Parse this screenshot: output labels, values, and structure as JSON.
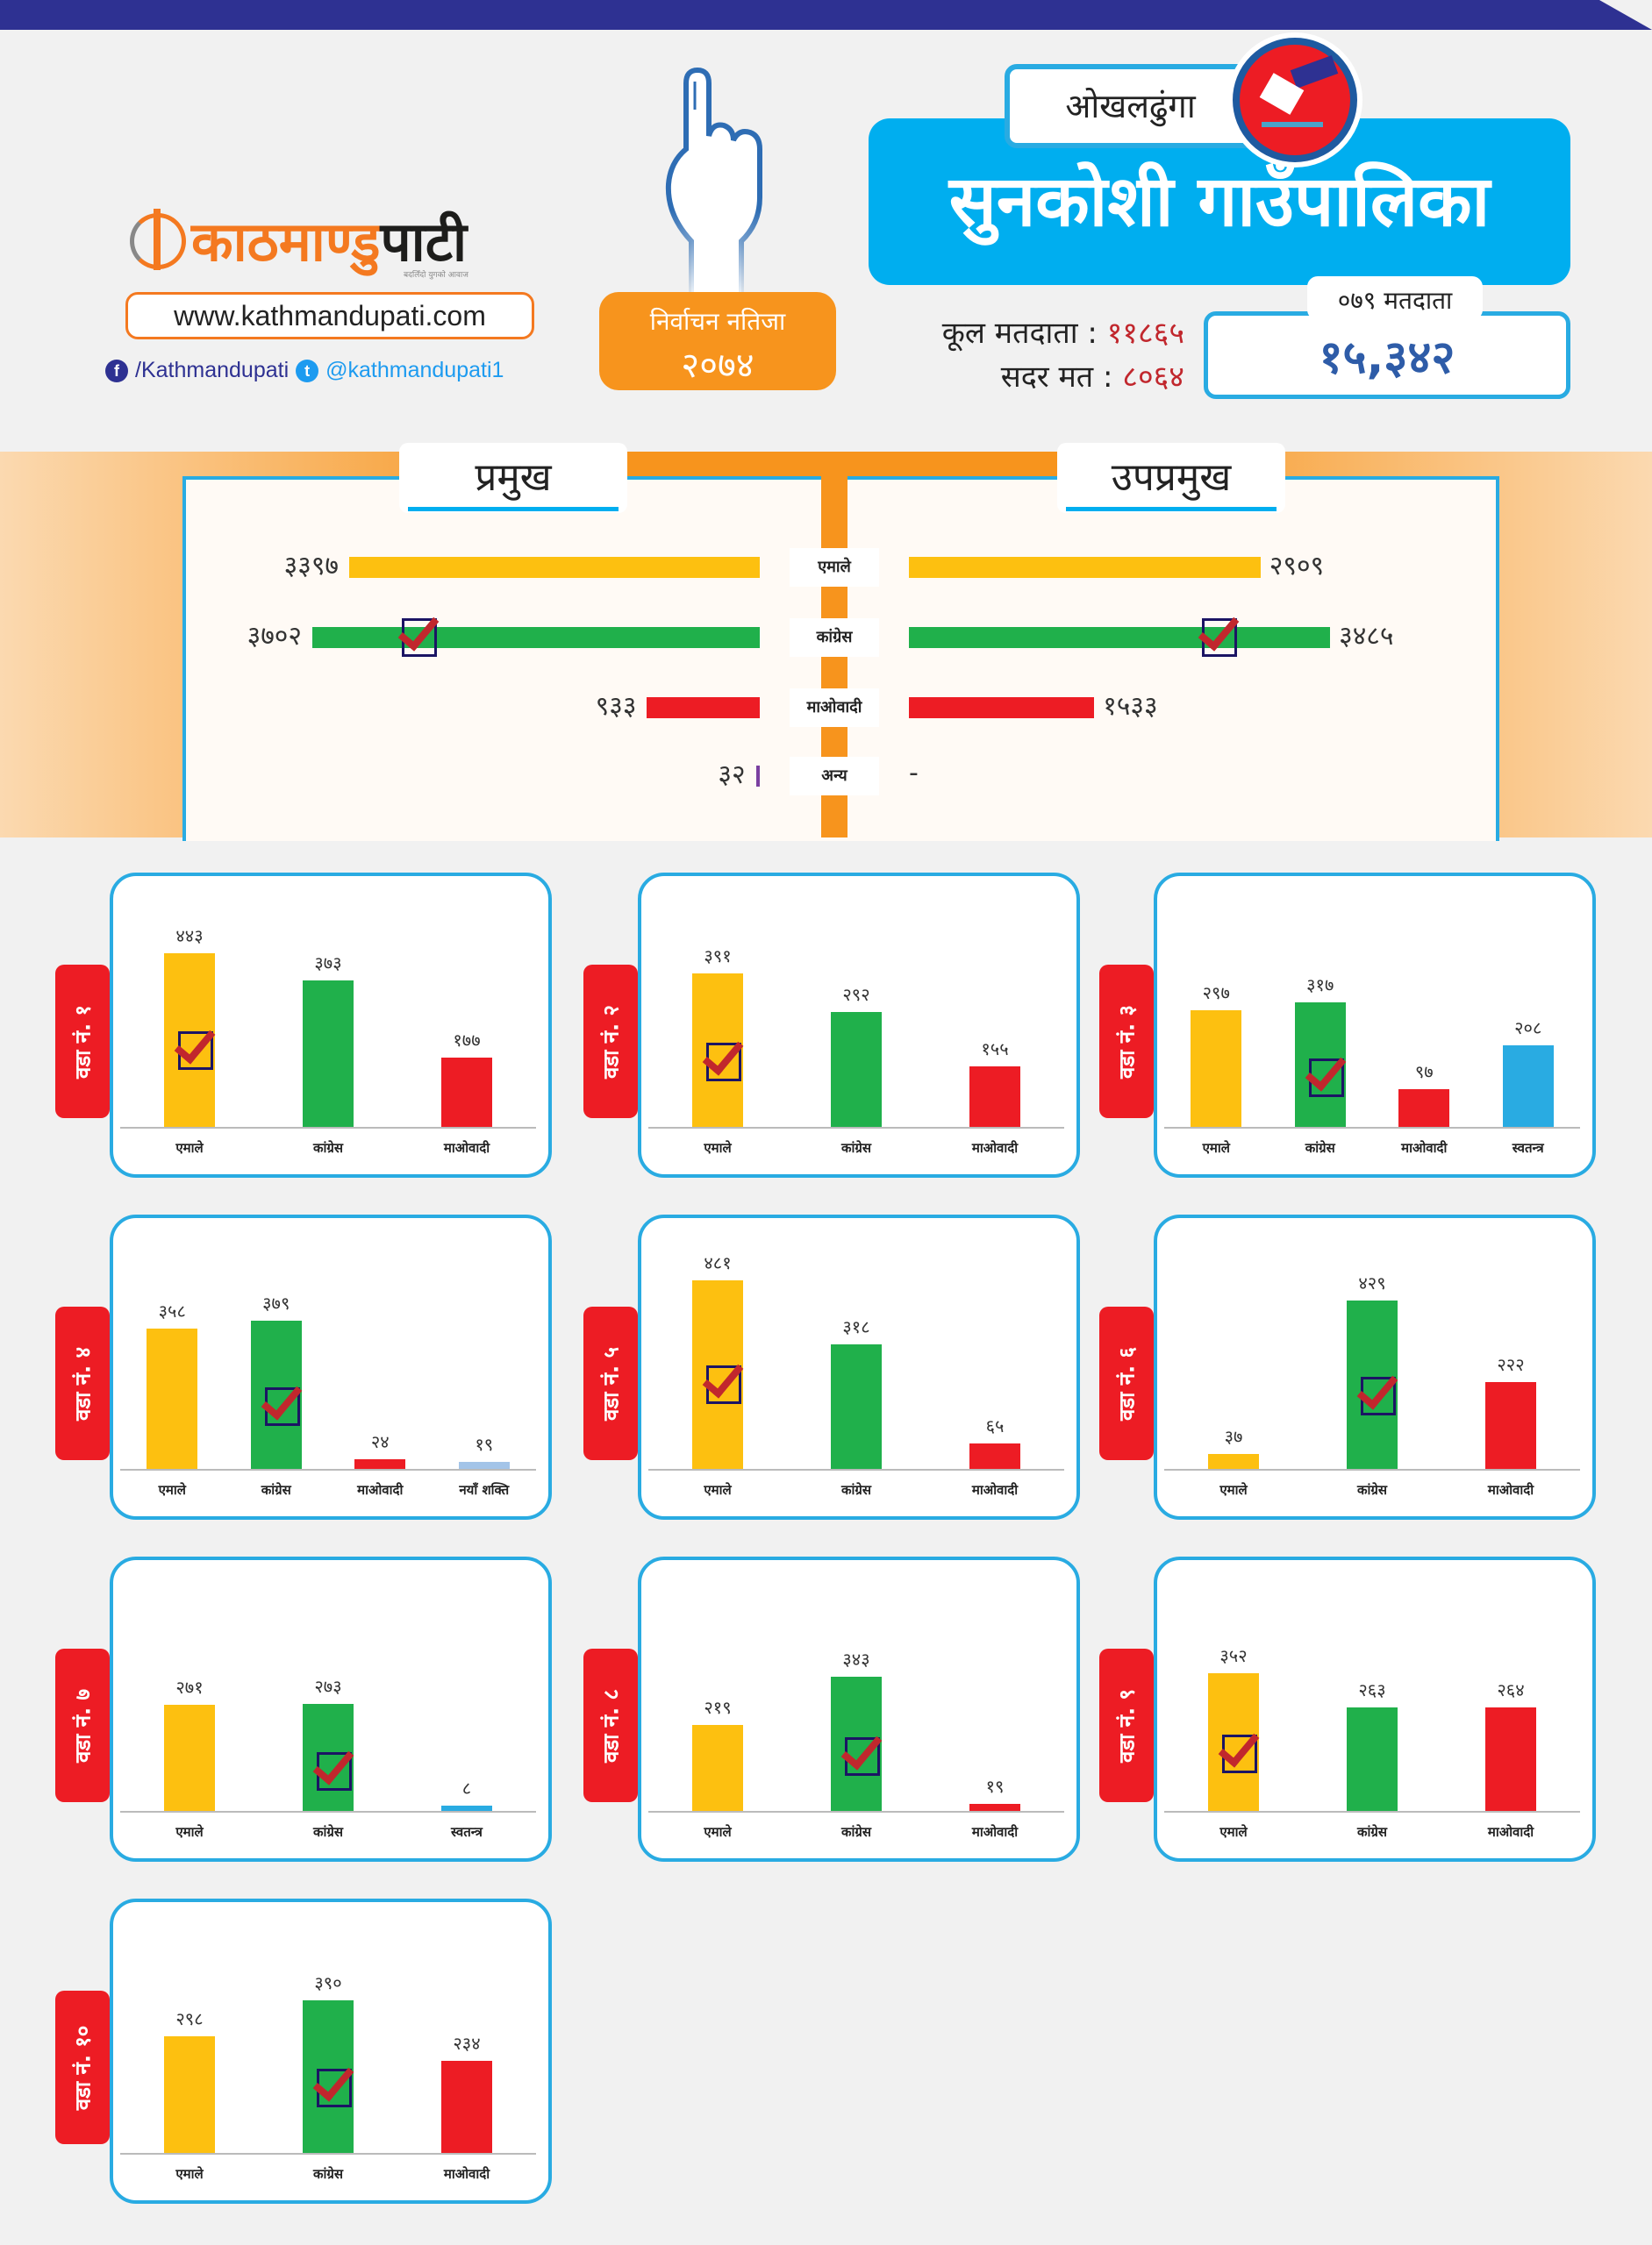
{
  "header": {
    "logo_part1": "काठमाण्डु",
    "logo_part2": "पाटी",
    "tagline": "बदलिँदो युगको आवाज",
    "website": "www.kathmandupati.com",
    "facebook": "/Kathmandupati",
    "twitter": "@kathmandupati1",
    "badge_line1": "निर्वाचन नतिजा",
    "badge_line2": "२०७४",
    "district": "ओखलढुंगा",
    "municipality": "सुनकोशी गाउँपालिका",
    "total_voters_label": "कूल मतदाता :",
    "total_voters_value": "११८६५",
    "valid_votes_label": "सदर मत :",
    "valid_votes_value": "८०६४",
    "voters_079_label": "०७९ मतदाता",
    "voters_079_value": "१५,३४२"
  },
  "colors": {
    "uml": "#fdc010",
    "congress": "#20b04b",
    "maoist": "#ed1c24",
    "independent": "#29abe2",
    "naya_shakti": "#a3c4e8",
    "other": "#7b3fa0",
    "accent": "#00aeef",
    "orange": "#f7941d"
  },
  "chart_data": [
    {
      "type": "bar",
      "orientation": "horizontal",
      "title": "प्रमुख",
      "categories": [
        "एमाले",
        "कांग्रेस",
        "माओवादी",
        "अन्य"
      ],
      "values": [
        3397,
        3702,
        933,
        32
      ],
      "labels": [
        "३३९७",
        "३७०२",
        "९३३",
        "३२"
      ],
      "winner": "कांग्रेस"
    },
    {
      "type": "bar",
      "orientation": "horizontal",
      "title": "उपप्रमुख",
      "categories": [
        "एमाले",
        "कांग्रेस",
        "माओवादी",
        "अन्य"
      ],
      "values": [
        2909,
        3485,
        1533,
        null
      ],
      "labels": [
        "२९०९",
        "३४८५",
        "१५३३",
        "-"
      ],
      "winner": "कांग्रेस"
    },
    {
      "type": "bar",
      "title": "वडा नं. १",
      "categories": [
        "एमाले",
        "कांग्रेस",
        "माओवादी"
      ],
      "values": [
        443,
        373,
        177
      ],
      "labels": [
        "४४३",
        "३७३",
        "१७७"
      ],
      "winner": "एमाले"
    },
    {
      "type": "bar",
      "title": "वडा नं. २",
      "categories": [
        "एमाले",
        "कांग्रेस",
        "माओवादी"
      ],
      "values": [
        391,
        292,
        155
      ],
      "labels": [
        "३९१",
        "२९२",
        "१५५"
      ],
      "winner": "एमाले"
    },
    {
      "type": "bar",
      "title": "वडा नं. ३",
      "categories": [
        "एमाले",
        "कांग्रेस",
        "माओवादी",
        "स्वतन्त्र"
      ],
      "values": [
        297,
        317,
        97,
        208
      ],
      "labels": [
        "२९७",
        "३१७",
        "९७",
        "२०८"
      ],
      "winner": "कांग्रेस"
    },
    {
      "type": "bar",
      "title": "वडा नं. ४",
      "categories": [
        "एमाले",
        "कांग्रेस",
        "माओवादी",
        "नयाँ शक्ति"
      ],
      "values": [
        358,
        379,
        24,
        19
      ],
      "labels": [
        "३५८",
        "३७९",
        "२४",
        "१९"
      ],
      "winner": "कांग्रेस"
    },
    {
      "type": "bar",
      "title": "वडा नं. ५",
      "categories": [
        "एमाले",
        "कांग्रेस",
        "माओवादी"
      ],
      "values": [
        481,
        318,
        65
      ],
      "labels": [
        "४८१",
        "३१८",
        "६५"
      ],
      "winner": "एमाले"
    },
    {
      "type": "bar",
      "title": "वडा नं. ६",
      "categories": [
        "एमाले",
        "कांग्रेस",
        "माओवादी"
      ],
      "values": [
        37,
        429,
        222
      ],
      "labels": [
        "३७",
        "४२९",
        "२२२"
      ],
      "winner": "कांग्रेस"
    },
    {
      "type": "bar",
      "title": "वडा नं. ७",
      "categories": [
        "एमाले",
        "कांग्रेस",
        "स्वतन्त्र"
      ],
      "values": [
        271,
        273,
        8
      ],
      "labels": [
        "२७१",
        "२७३",
        "८"
      ],
      "winner": "कांग्रेस"
    },
    {
      "type": "bar",
      "title": "वडा नं. ८",
      "categories": [
        "एमाले",
        "कांग्रेस",
        "माओवादी"
      ],
      "values": [
        219,
        343,
        19
      ],
      "labels": [
        "२१९",
        "३४३",
        "१९"
      ],
      "winner": "कांग्रेस"
    },
    {
      "type": "bar",
      "title": "वडा नं. ९",
      "categories": [
        "एमाले",
        "कांग्रेस",
        "माओवादी"
      ],
      "values": [
        352,
        263,
        264
      ],
      "labels": [
        "३५२",
        "२६३",
        "२६४"
      ],
      "winner": "एमाले"
    },
    {
      "type": "bar",
      "title": "वडा नं. १०",
      "categories": [
        "एमाले",
        "कांग्रेस",
        "माओवादी"
      ],
      "values": [
        298,
        390,
        234
      ],
      "labels": [
        "२९८",
        "३९०",
        "२३४"
      ],
      "winner": "कांग्रेस"
    }
  ]
}
